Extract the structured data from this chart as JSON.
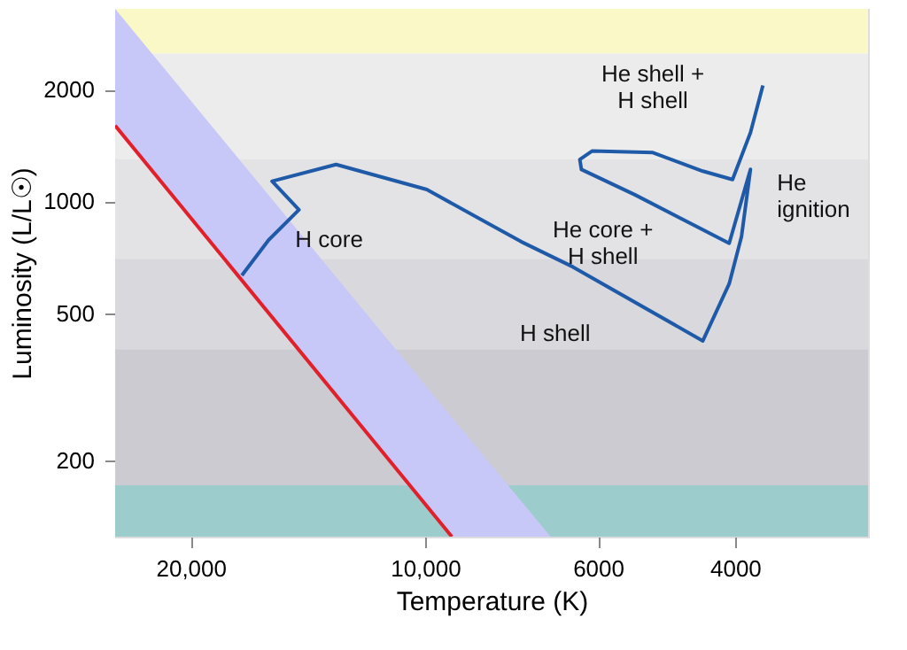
{
  "chart_data": {
    "type": "line",
    "xlabel": "Temperature (K)",
    "ylabel": "Luminosity (L/L☉)",
    "log": "xy",
    "xlim": [
      25000,
      2700
    ],
    "ylim": [
      125,
      3300
    ],
    "xticks": [
      {
        "value": 20000,
        "label": "20,000"
      },
      {
        "value": 10000,
        "label": "10,000"
      },
      6000,
      4000
    ],
    "yticks": [
      200,
      500,
      1000,
      2000
    ],
    "grid": false,
    "bands": [
      {
        "axis": "y",
        "from": 2500,
        "to": 3300,
        "color": "#fbf8c8"
      },
      {
        "axis": "y",
        "from": 1300,
        "to": 2500,
        "color": "#ececec"
      },
      {
        "axis": "y",
        "from": 700,
        "to": 1300,
        "color": "#e3e3e5"
      },
      {
        "axis": "y",
        "from": 400,
        "to": 700,
        "color": "#d9d9dd"
      },
      {
        "axis": "y",
        "from": 172,
        "to": 400,
        "color": "#cbcbd1"
      },
      {
        "axis": "y",
        "from": 125,
        "to": 172,
        "color": "#9ccccc"
      }
    ],
    "series": [
      {
        "type": "line",
        "color": "#e0202a",
        "colors": [
          "#c8c8f8",
          "#c8c8f8",
          "#c8c8f8"
        ],
        "x": [
          25000,
          9240,
          6900
        ],
        "values": [
          1600,
          125,
          null
        ],
        "lower": [
          1600,
          125,
          125
        ],
        "upper": [
          3300,
          262,
          125
        ]
      },
      {
        "type": "line",
        "color": "#1f5aa8",
        "x": [
          17190,
          15880,
          14520,
          15720,
          13010,
          9950,
          7530,
          6460,
          4400,
          4070,
          3925,
          3822,
          4070,
          5380,
          6300,
          6330,
          6100,
          5100,
          4400,
          4030,
          3822,
          3684
        ],
        "values": [
          632,
          787,
          949,
          1133,
          1257,
          1076,
          779,
          666,
          421,
          600,
          803,
          1219,
          771,
          1042,
          1219,
          1297,
          1367,
          1353,
          1206,
          1145,
          1532,
          2052
        ]
      }
    ],
    "annotations": [
      {
        "text": "H core",
        "x": 15880,
        "y": 787
      },
      {
        "text": "H shell",
        "x": 6460,
        "y": 666
      },
      {
        "text": "He core +\nH shell",
        "x": 5380,
        "y": 1042
      },
      {
        "text": "He shell +\nH shell",
        "x": 5100,
        "y": 1353
      },
      {
        "text": "He\nignition",
        "x": 3822,
        "y": 1219
      }
    ]
  }
}
